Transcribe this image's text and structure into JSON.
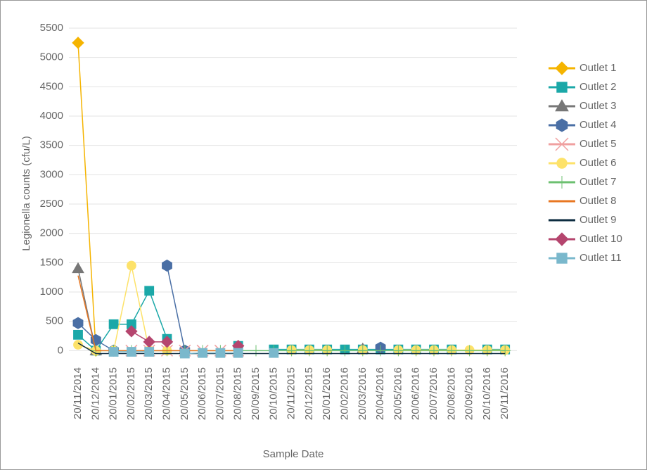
{
  "chart_data": {
    "type": "line",
    "y_label": "Legionella counts (cfu/L)",
    "x_label": "Sample Date",
    "categories": [
      "20/11/2014",
      "20/12/2014",
      "20/01/2015",
      "20/02/2015",
      "20/03/2015",
      "20/04/2015",
      "20/05/2015",
      "20/06/2015",
      "20/07/2015",
      "20/08/2015",
      "20/09/2015",
      "20/10/2015",
      "20/11/2015",
      "20/12/2015",
      "20/01/2016",
      "20/02/2016",
      "20/03/2016",
      "20/04/2016",
      "20/05/2016",
      "20/06/2016",
      "20/07/2016",
      "20/08/2016",
      "20/09/2016",
      "20/10/2016",
      "20/11/2016"
    ],
    "ylim": [
      -200,
      5500
    ],
    "yticks": [
      0,
      500,
      1000,
      1500,
      2000,
      2500,
      3000,
      3500,
      4000,
      4500,
      5000,
      5500
    ],
    "grid": true,
    "series": [
      {
        "name": "Outlet 1",
        "color": "#f5b400",
        "marker": "diamond",
        "values": [
          5250,
          0,
          null,
          null,
          null,
          null,
          null,
          null,
          null,
          null,
          null,
          null,
          null,
          null,
          null,
          null,
          null,
          null,
          null,
          null,
          null,
          null,
          null,
          null,
          null
        ]
      },
      {
        "name": "Outlet 2",
        "color": "#1ba8a8",
        "marker": "square",
        "values": [
          270,
          0,
          450,
          450,
          1020,
          200,
          null,
          null,
          null,
          80,
          null,
          20,
          20,
          20,
          20,
          20,
          20,
          20,
          20,
          20,
          20,
          20,
          null,
          20,
          20
        ]
      },
      {
        "name": "Outlet 3",
        "color": "#777777",
        "marker": "triangle",
        "values": [
          1400,
          0,
          null,
          null,
          null,
          null,
          null,
          null,
          null,
          null,
          null,
          null,
          null,
          null,
          null,
          null,
          30,
          null,
          null,
          null,
          null,
          null,
          null,
          null,
          null
        ]
      },
      {
        "name": "Outlet 4",
        "color": "#4a6fa5",
        "marker": "hexagon",
        "values": [
          470,
          180,
          0,
          null,
          null,
          1450,
          0,
          null,
          null,
          null,
          null,
          null,
          null,
          null,
          null,
          null,
          null,
          50,
          null,
          null,
          null,
          null,
          null,
          null,
          null
        ]
      },
      {
        "name": "Outlet 5",
        "color": "#f0a0a0",
        "marker": "cross",
        "values": [
          null,
          null,
          null,
          0,
          0,
          0,
          0,
          0,
          0,
          0,
          null,
          null,
          null,
          null,
          null,
          null,
          null,
          null,
          null,
          null,
          null,
          null,
          null,
          null,
          null
        ]
      },
      {
        "name": "Outlet 6",
        "color": "#fde26a",
        "marker": "circle",
        "values": [
          100,
          0,
          0,
          1450,
          0,
          0,
          null,
          null,
          null,
          null,
          null,
          null,
          10,
          10,
          10,
          null,
          10,
          null,
          10,
          10,
          10,
          10,
          10,
          10,
          10
        ]
      },
      {
        "name": "Outlet 7",
        "color": "#6cc070",
        "marker": "plus",
        "values": [
          null,
          0,
          0,
          0,
          0,
          0,
          0,
          0,
          0,
          0,
          0,
          0,
          0,
          0,
          0,
          0,
          0,
          0,
          0,
          0,
          0,
          0,
          0,
          0,
          0
        ]
      },
      {
        "name": "Outlet 8",
        "color": "#e87722",
        "marker": "none",
        "values": [
          1280,
          0,
          0,
          0,
          0,
          0,
          0,
          0,
          0,
          0,
          null,
          null,
          null,
          null,
          null,
          null,
          null,
          null,
          null,
          null,
          null,
          null,
          null,
          null,
          null
        ]
      },
      {
        "name": "Outlet 9",
        "color": "#0d2c40",
        "marker": "none",
        "values": [
          130,
          -50,
          -50,
          -50,
          -50,
          -50,
          -50,
          -50,
          -50,
          -50,
          -50,
          -50,
          -50,
          -50,
          -50,
          -50,
          -50,
          -50,
          -50,
          -50,
          -50,
          -50,
          -50,
          -50,
          -50
        ]
      },
      {
        "name": "Outlet 10",
        "color": "#b5456e",
        "marker": "diamond",
        "values": [
          null,
          null,
          null,
          330,
          150,
          150,
          null,
          null,
          null,
          80,
          null,
          null,
          null,
          null,
          null,
          null,
          null,
          null,
          null,
          null,
          null,
          null,
          null,
          null,
          null
        ]
      },
      {
        "name": "Outlet 11",
        "color": "#7ab8cc",
        "marker": "square",
        "values": [
          null,
          null,
          -20,
          -20,
          -20,
          null,
          -50,
          -40,
          -40,
          -40,
          null,
          -40,
          null,
          null,
          null,
          null,
          null,
          null,
          null,
          null,
          null,
          null,
          null,
          null,
          null
        ]
      }
    ]
  }
}
